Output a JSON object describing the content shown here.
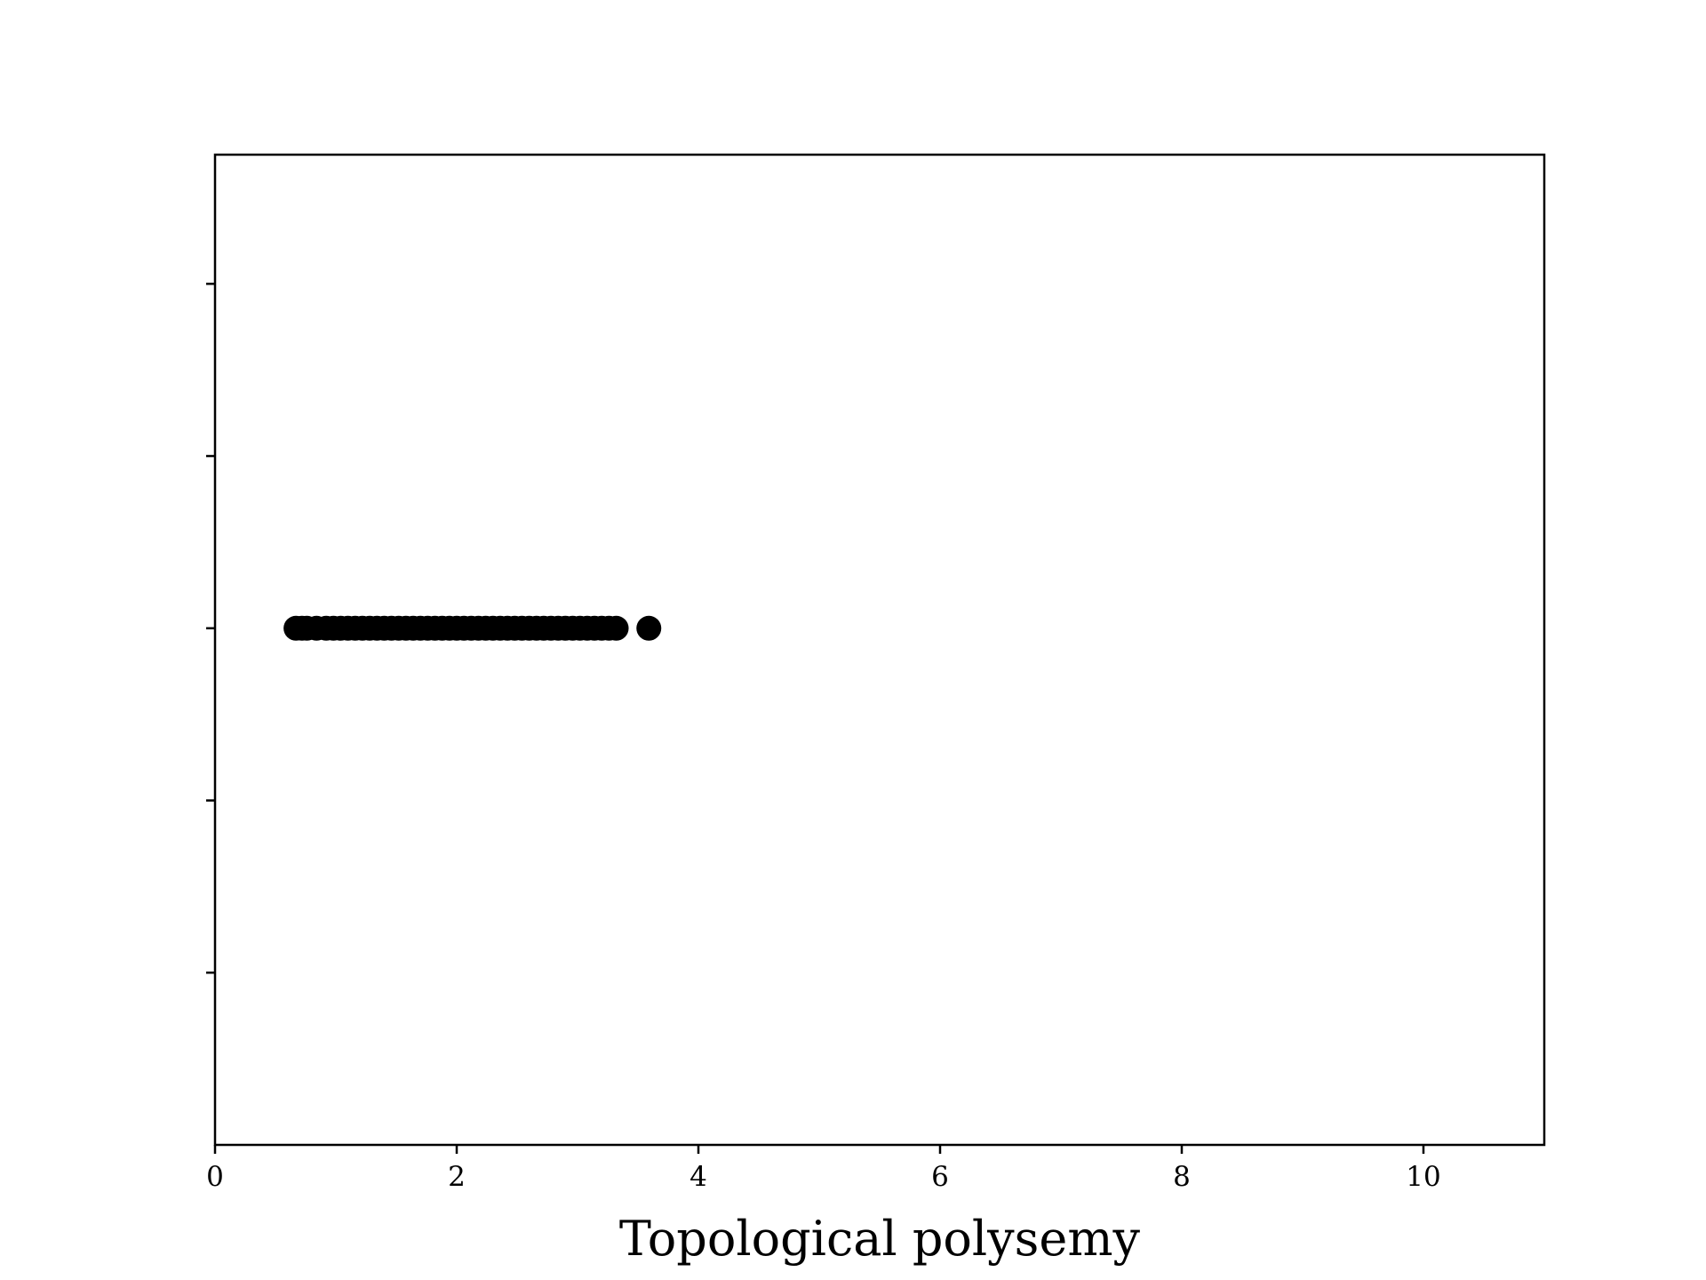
{
  "chart_data": {
    "type": "scatter",
    "title": "",
    "xlabel": "Topological polysemy",
    "ylabel": "",
    "xlim": [
      0,
      11
    ],
    "ylim": [
      -0.06,
      0.055
    ],
    "x_ticks": [
      0,
      2,
      4,
      6,
      8,
      10
    ],
    "x_tick_labels": [
      "0",
      "2",
      "4",
      "6",
      "8",
      "10"
    ],
    "y_ticks": [
      -0.04,
      -0.02,
      0.0,
      0.02,
      0.04
    ],
    "y_tick_labels": [
      "",
      "",
      "",
      "",
      ""
    ],
    "grid": false,
    "legend": "none",
    "marker_color": "#000000",
    "series": [
      {
        "x": [
          0.67,
          0.72,
          0.76,
          0.84,
          0.92,
          0.98,
          1.04,
          1.1,
          1.16,
          1.22,
          1.28,
          1.34,
          1.4,
          1.46,
          1.52,
          1.58,
          1.64,
          1.7,
          1.76,
          1.82,
          1.88,
          1.94,
          2.0,
          2.06,
          2.12,
          2.18,
          2.24,
          2.3,
          2.36,
          2.42,
          2.48,
          2.54,
          2.6,
          2.66,
          2.72,
          2.78,
          2.84,
          2.9,
          2.96,
          3.02,
          3.08,
          3.14,
          3.2,
          3.26,
          3.32,
          3.59
        ],
        "y": [
          0,
          0,
          0,
          0,
          0,
          0,
          0,
          0,
          0,
          0,
          0,
          0,
          0,
          0,
          0,
          0,
          0,
          0,
          0,
          0,
          0,
          0,
          0,
          0,
          0,
          0,
          0,
          0,
          0,
          0,
          0,
          0,
          0,
          0,
          0,
          0,
          0,
          0,
          0,
          0,
          0,
          0,
          0,
          0,
          0,
          0
        ]
      }
    ]
  }
}
